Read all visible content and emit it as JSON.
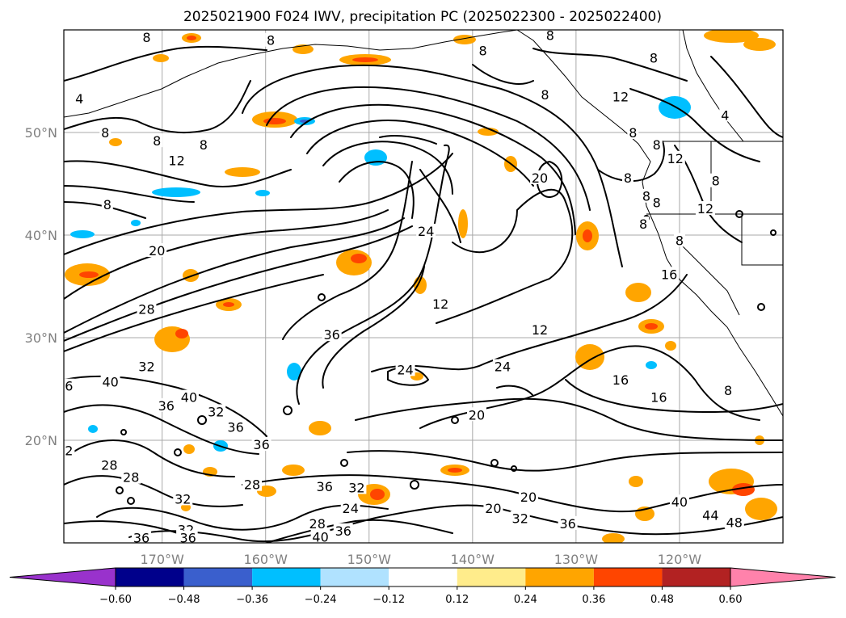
{
  "chart_data": {
    "type": "contour",
    "title": "2025021900 F024 IWV, precipitation PC (2025022300 - 2025022400)",
    "x_axis": {
      "range_deg": [
        -179.5,
        -110
      ],
      "ticks": [
        -170,
        -160,
        -150,
        -140,
        -130,
        -120
      ],
      "tick_labels": [
        "170°W",
        "160°W",
        "150°W",
        "140°W",
        "130°W",
        "120°W"
      ]
    },
    "y_axis": {
      "range_deg": [
        10,
        60
      ],
      "ticks": [
        20,
        30,
        40,
        50
      ],
      "tick_labels": [
        "20°N",
        "30°N",
        "40°N",
        "50°N"
      ]
    },
    "grid": true,
    "colorbar": {
      "position": "bottom",
      "extend": "both",
      "bounds": [
        -0.6,
        -0.48,
        -0.36,
        -0.24,
        -0.12,
        0.12,
        0.24,
        0.36,
        0.48,
        0.6
      ],
      "tick_labels": [
        "−0.60",
        "−0.48",
        "−0.36",
        "−0.24",
        "−0.12",
        "0.12",
        "0.24",
        "0.36",
        "0.48",
        "0.60"
      ],
      "colors": [
        "#9932cc",
        "#00008b",
        "#3a5fcd",
        "#00bfff",
        "#b0e2ff",
        "#ffffff",
        "#ffec8b",
        "#ffa500",
        "#ff4500",
        "#b22222",
        "#ff82ab"
      ]
    },
    "contour_labels": [
      {
        "text": "8",
        "lon": -159.5,
        "lat": 59.0
      },
      {
        "text": "4",
        "lon": -178.0,
        "lat": 53.3
      },
      {
        "text": "8",
        "lon": -175.5,
        "lat": 50.0
      },
      {
        "text": "8",
        "lon": -170.5,
        "lat": 49.2
      },
      {
        "text": "8",
        "lon": -171.5,
        "lat": 59.3
      },
      {
        "text": "8",
        "lon": -139.0,
        "lat": 58.0
      },
      {
        "text": "8",
        "lon": -133.0,
        "lat": 53.7
      },
      {
        "text": "8",
        "lon": -132.5,
        "lat": 59.5
      },
      {
        "text": "8",
        "lon": -122.5,
        "lat": 57.3
      },
      {
        "text": "12",
        "lon": -125.7,
        "lat": 53.5
      },
      {
        "text": "8",
        "lon": -124.5,
        "lat": 50.0
      },
      {
        "text": "4",
        "lon": -115.6,
        "lat": 51.7
      },
      {
        "text": "8",
        "lon": -122.2,
        "lat": 48.8
      },
      {
        "text": "8",
        "lon": -125.0,
        "lat": 45.6
      },
      {
        "text": "8",
        "lon": -122.2,
        "lat": 43.2
      },
      {
        "text": "12",
        "lon": -120.4,
        "lat": 47.5
      },
      {
        "text": "8",
        "lon": -116.5,
        "lat": 45.3
      },
      {
        "text": "12",
        "lon": -117.5,
        "lat": 42.6
      },
      {
        "text": "8",
        "lon": -123.5,
        "lat": 41.1
      },
      {
        "text": "8",
        "lon": -120.0,
        "lat": 39.5
      },
      {
        "text": "16",
        "lon": -121.0,
        "lat": 36.2
      },
      {
        "text": "12",
        "lon": -168.6,
        "lat": 47.3
      },
      {
        "text": "8",
        "lon": -166.0,
        "lat": 48.8
      },
      {
        "text": "8",
        "lon": -175.3,
        "lat": 43.0
      },
      {
        "text": "20",
        "lon": -170.5,
        "lat": 38.5
      },
      {
        "text": "28",
        "lon": -171.5,
        "lat": 32.8
      },
      {
        "text": "36",
        "lon": -153.6,
        "lat": 30.3
      },
      {
        "text": "12",
        "lon": -143.1,
        "lat": 33.3
      },
      {
        "text": "24",
        "lon": -144.5,
        "lat": 40.4
      },
      {
        "text": "20",
        "lon": -133.5,
        "lat": 45.6
      },
      {
        "text": "12",
        "lon": -133.5,
        "lat": 30.8
      },
      {
        "text": "8",
        "lon": -123.2,
        "lat": 43.8
      },
      {
        "text": "24",
        "lon": -146.5,
        "lat": 26.9
      },
      {
        "text": "24",
        "lon": -137.1,
        "lat": 27.2
      },
      {
        "text": "16",
        "lon": -125.7,
        "lat": 25.9
      },
      {
        "text": "16",
        "lon": -122.0,
        "lat": 24.2
      },
      {
        "text": "20",
        "lon": -139.6,
        "lat": 22.5
      },
      {
        "text": "8",
        "lon": -115.3,
        "lat": 24.9
      },
      {
        "text": "40",
        "lon": -175.0,
        "lat": 25.7
      },
      {
        "text": "32",
        "lon": -171.5,
        "lat": 27.2
      },
      {
        "text": "40",
        "lon": -167.4,
        "lat": 24.2
      },
      {
        "text": "36",
        "lon": -169.6,
        "lat": 23.4
      },
      {
        "text": "32",
        "lon": -164.8,
        "lat": 22.8
      },
      {
        "text": "36",
        "lon": -162.9,
        "lat": 21.3
      },
      {
        "text": "36",
        "lon": -160.4,
        "lat": 19.6
      },
      {
        "text": "28",
        "lon": -175.1,
        "lat": 17.6
      },
      {
        "text": "28",
        "lon": -173.0,
        "lat": 16.4
      },
      {
        "text": "28",
        "lon": -161.3,
        "lat": 15.7
      },
      {
        "text": "32",
        "lon": -168.0,
        "lat": 14.3
      },
      {
        "text": "36",
        "lon": -154.3,
        "lat": 15.5
      },
      {
        "text": "32",
        "lon": -151.2,
        "lat": 15.4
      },
      {
        "text": "24",
        "lon": -151.8,
        "lat": 13.4
      },
      {
        "text": "20",
        "lon": -138.0,
        "lat": 13.4
      },
      {
        "text": "20",
        "lon": -134.6,
        "lat": 14.5
      },
      {
        "text": "32",
        "lon": -135.4,
        "lat": 12.4
      },
      {
        "text": "36",
        "lon": -130.8,
        "lat": 11.9
      },
      {
        "text": "32",
        "lon": -167.7,
        "lat": 11.3
      },
      {
        "text": "36",
        "lon": -172.0,
        "lat": 10.5
      },
      {
        "text": "36",
        "lon": -167.5,
        "lat": 10.5
      },
      {
        "text": "28",
        "lon": -155.0,
        "lat": 11.9
      },
      {
        "text": "40",
        "lon": -154.7,
        "lat": 10.6
      },
      {
        "text": "36",
        "lon": -152.5,
        "lat": 11.2
      },
      {
        "text": "40",
        "lon": -120.0,
        "lat": 14.0
      },
      {
        "text": "44",
        "lon": -117.0,
        "lat": 12.7
      },
      {
        "text": "48",
        "lon": -114.7,
        "lat": 12.0
      },
      {
        "text": "6",
        "lon": -179.0,
        "lat": 25.3
      },
      {
        "text": "2",
        "lon": -179.0,
        "lat": 19.0
      }
    ]
  }
}
